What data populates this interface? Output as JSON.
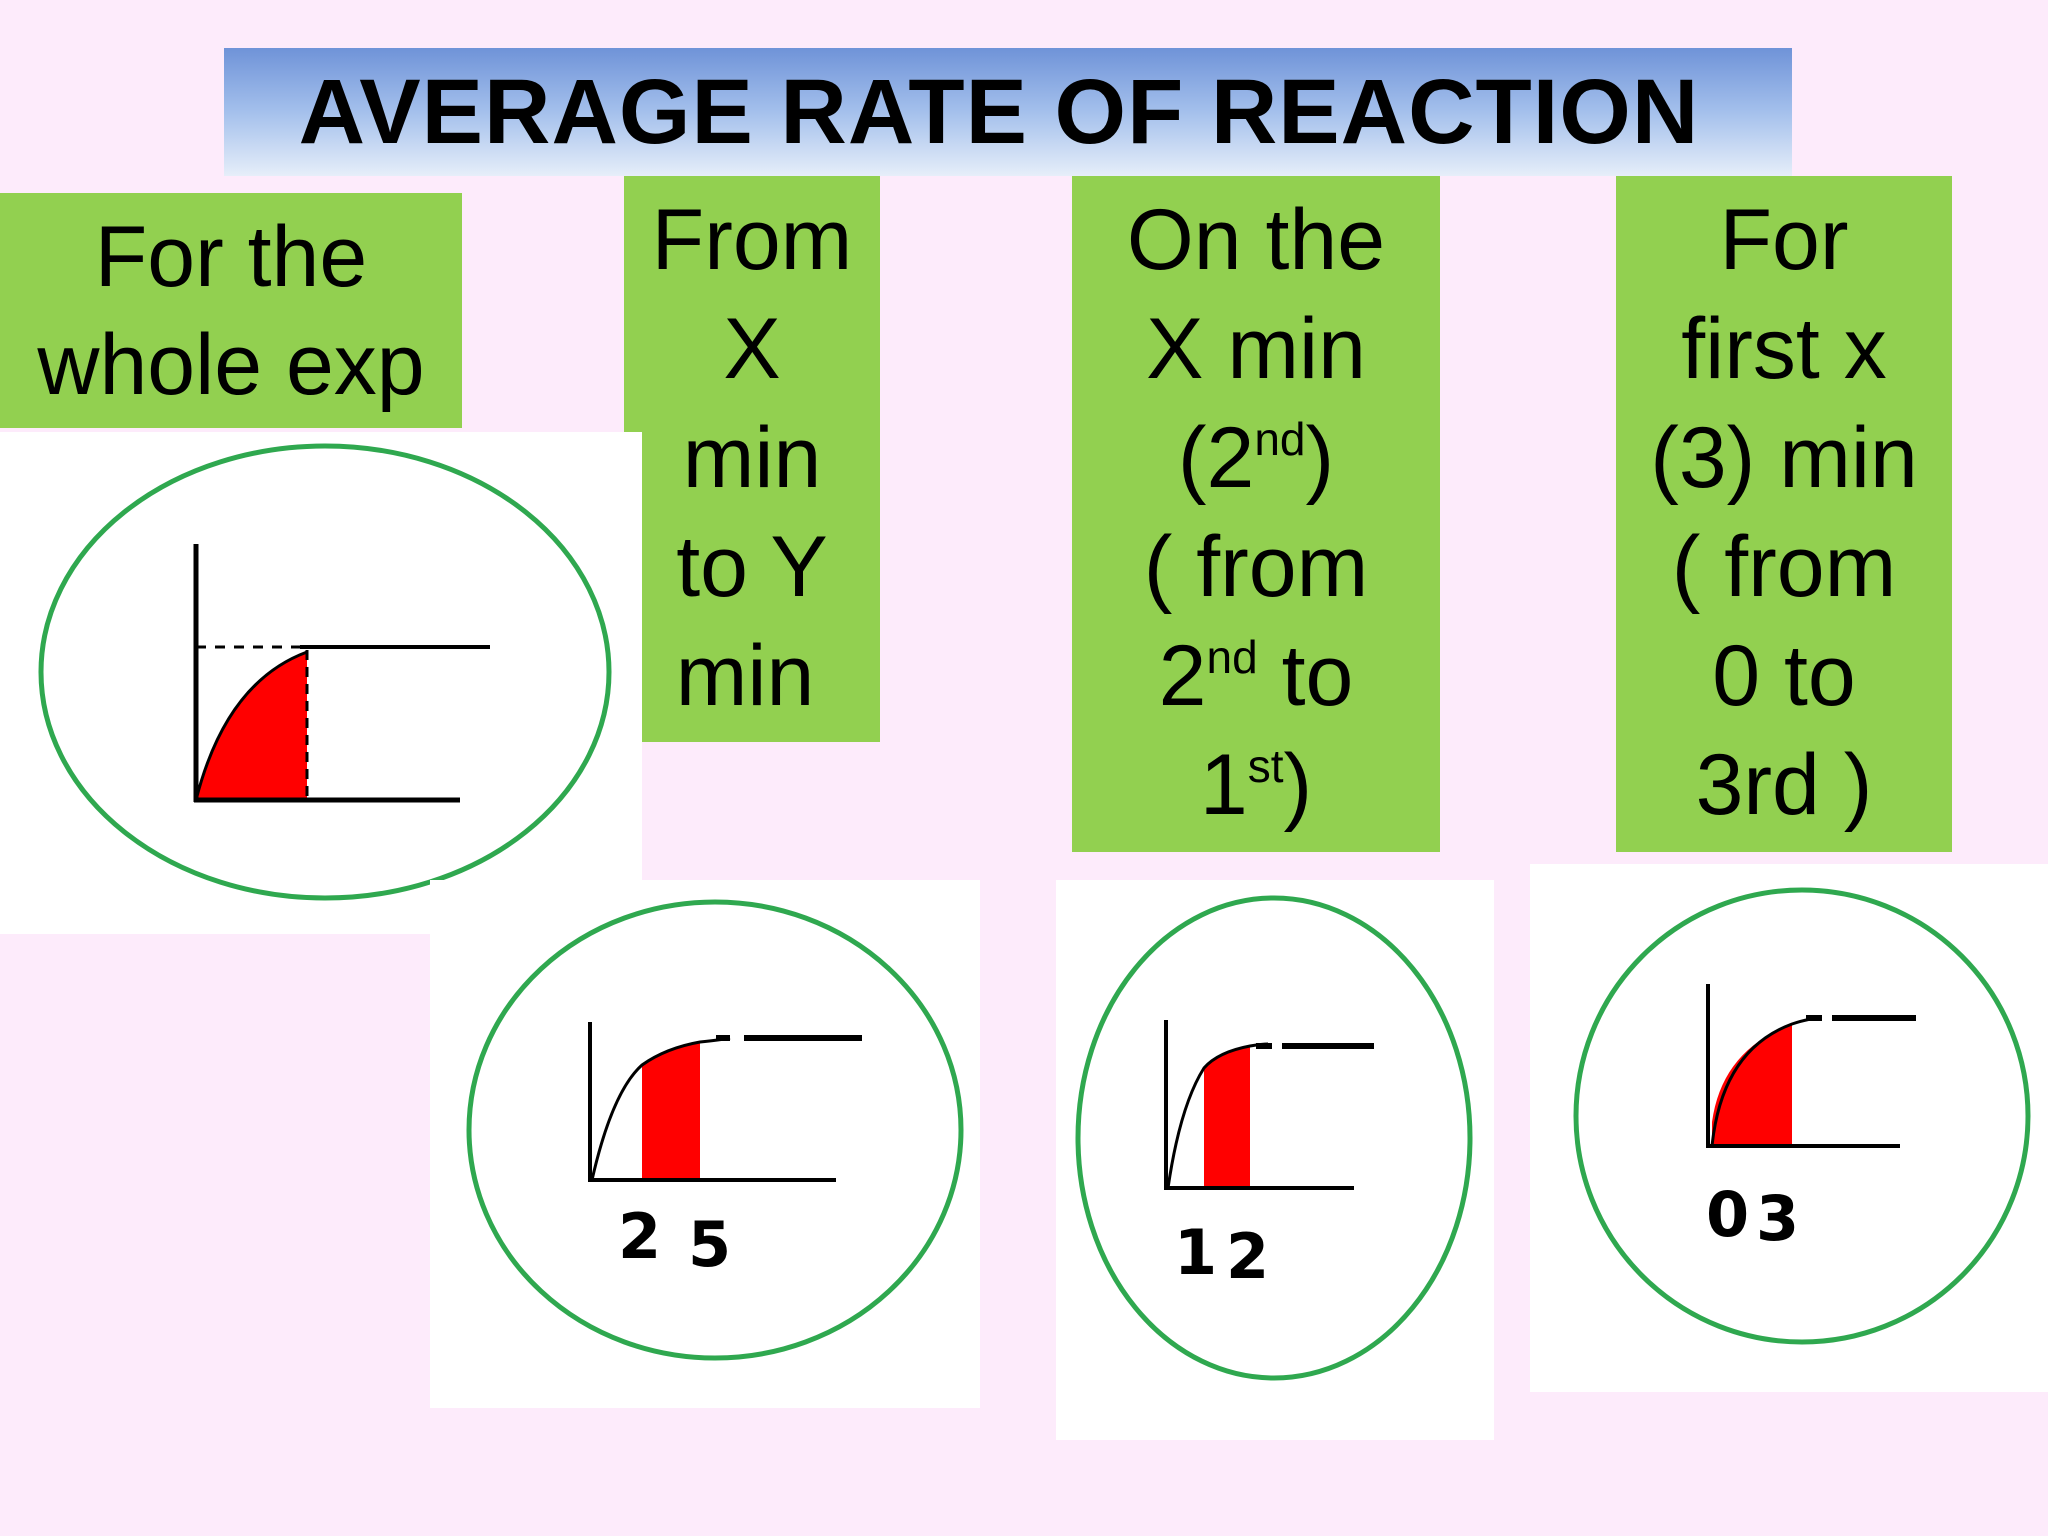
{
  "title": "AVERAGE RATE OF REACTION",
  "colors": {
    "background": "#fdebfb",
    "label_box": "#92d050",
    "circle": "#2fa84f",
    "shaded_area": "#ff0000",
    "title_gradient_top": "#6f93d8"
  },
  "labels": {
    "whole_exp": {
      "lines": [
        "For the",
        "whole exp"
      ]
    },
    "from_x_to_y": {
      "lines": [
        "From",
        "X",
        "min",
        "to Y",
        "min"
      ]
    },
    "on_the_x_min": {
      "line1": "On the",
      "line2": "X min",
      "line3_open": "(2",
      "line3_sup": "nd",
      "line3_close": ")",
      "line4": "( from",
      "line5_pre": "2",
      "line5_sup": "nd",
      "line5_post": " to",
      "line6_pre": "1",
      "line6_sup": "st",
      "line6_post": ")"
    },
    "first_x_min": {
      "lines": [
        "For",
        "first x",
        "(3) min",
        "( from",
        "0 to",
        "3rd )"
      ]
    }
  },
  "graphs": {
    "whole_exp": {
      "icon": "rate-curve-full-area",
      "ticks": []
    },
    "from_x_to_y": {
      "icon": "rate-curve-interval-area",
      "ticks": [
        "2",
        "5"
      ]
    },
    "on_the_x_min": {
      "icon": "rate-curve-interval-area",
      "ticks": [
        "1",
        "2"
      ]
    },
    "first_x_min": {
      "icon": "rate-curve-initial-area",
      "ticks": [
        "0",
        "3"
      ]
    }
  }
}
